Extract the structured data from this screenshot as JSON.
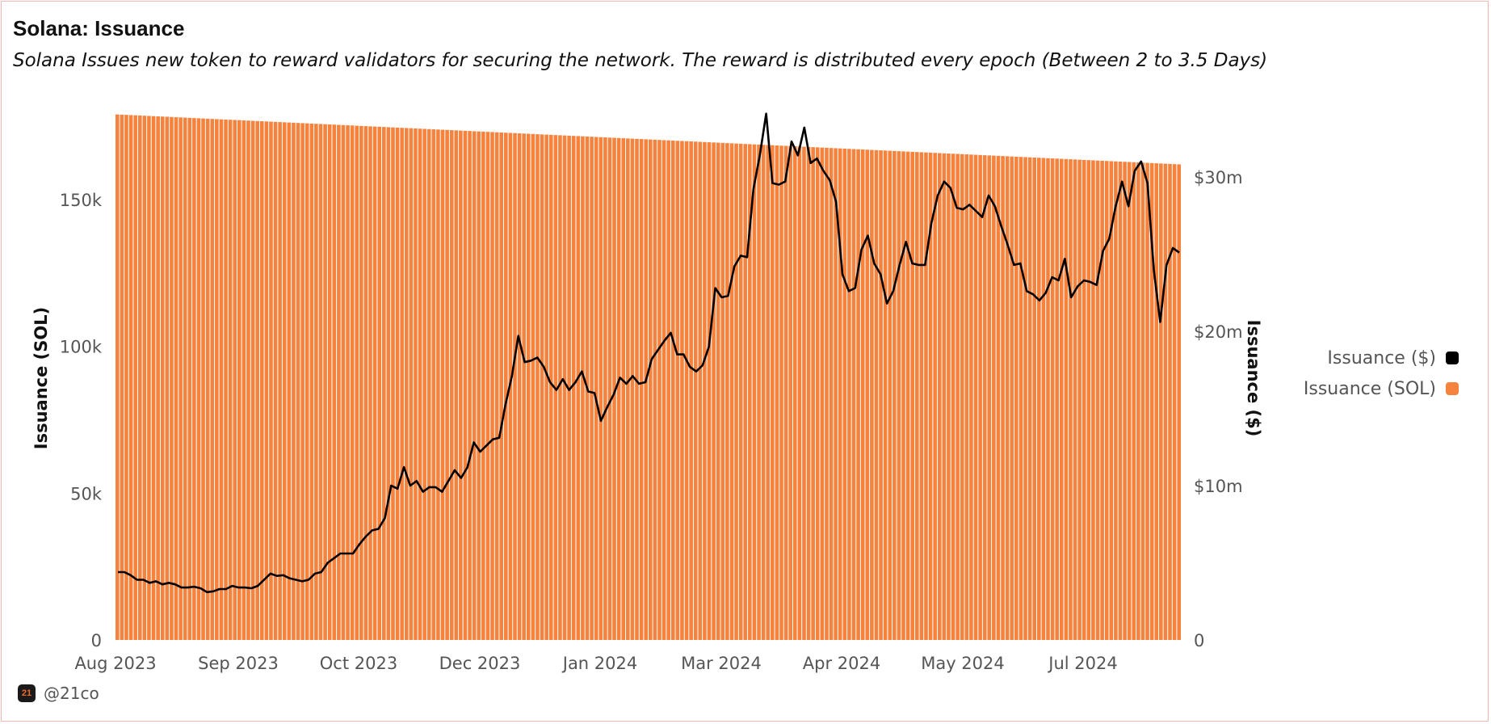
{
  "header": {
    "title": "Solana: Issuance",
    "subtitle": "Solana Issues new token to reward validators for securing the network. The reward is distributed every epoch (Between 2 to 3.5 Days)"
  },
  "footer": {
    "handle": "@21co",
    "logo_text": "21"
  },
  "legend": [
    {
      "label": "Issuance ($)",
      "color": "#000000"
    },
    {
      "label": "Issuance (SOL)",
      "color": "#f5823d"
    }
  ],
  "colors": {
    "bars": "#f5823d",
    "bar_gap": "#ffffff",
    "line": "#000000"
  },
  "chart_data": {
    "type": "bar+line",
    "x_axis": {
      "tick_labels": [
        "Aug 2023",
        "Sep 2023",
        "Oct 2023",
        "Dec 2023",
        "Jan 2024",
        "Mar 2024",
        "Apr 2024",
        "May 2024",
        "Jul 2024"
      ]
    },
    "y_left": {
      "label": "Issuance (SOL)",
      "range": [
        0,
        180000
      ],
      "tick_labels": [
        "0",
        "50k",
        "100k",
        "150k"
      ],
      "tick_values": [
        0,
        50000,
        100000,
        150000
      ]
    },
    "y_right": {
      "label": "Issuance ($)",
      "range": [
        0,
        34500000
      ],
      "tick_labels": [
        "0",
        "$10m",
        "$20m",
        "$30m"
      ],
      "tick_values": [
        0,
        10000000,
        20000000,
        30000000
      ]
    },
    "bars": {
      "series": "Issuance (SOL)",
      "count": 236,
      "start_value": 179000,
      "end_value": 162000
    },
    "line": {
      "series": "Issuance ($)",
      "values_m": [
        4.4,
        4.4,
        4.2,
        3.9,
        3.9,
        3.7,
        3.8,
        3.6,
        3.7,
        3.6,
        3.4,
        3.4,
        3.45,
        3.35,
        3.1,
        3.15,
        3.3,
        3.3,
        3.5,
        3.4,
        3.4,
        3.35,
        3.5,
        3.9,
        4.3,
        4.15,
        4.2,
        4.0,
        3.9,
        3.8,
        3.9,
        4.3,
        4.4,
        5.0,
        5.3,
        5.6,
        5.6,
        5.6,
        6.2,
        6.7,
        7.1,
        7.2,
        7.9,
        10.0,
        9.8,
        11.2,
        10.0,
        10.3,
        9.6,
        9.9,
        9.9,
        9.6,
        10.3,
        11.0,
        10.5,
        11.2,
        12.8,
        12.2,
        12.6,
        13.0,
        13.1,
        15.3,
        17.1,
        19.7,
        18.0,
        18.1,
        18.3,
        17.7,
        16.7,
        16.2,
        16.9,
        16.2,
        16.7,
        17.4,
        16.1,
        16.0,
        14.2,
        15.1,
        15.9,
        17.0,
        16.6,
        17.1,
        16.6,
        16.7,
        18.2,
        18.8,
        19.4,
        19.9,
        18.5,
        18.5,
        17.7,
        17.4,
        17.8,
        19.0,
        22.8,
        22.2,
        22.3,
        24.2,
        24.9,
        24.8,
        29.2,
        31.4,
        34.1,
        29.6,
        29.5,
        29.7,
        32.3,
        31.4,
        33.2,
        30.9,
        31.2,
        30.4,
        29.8,
        28.4,
        23.7,
        22.6,
        22.8,
        25.3,
        26.2,
        24.4,
        23.7,
        21.8,
        22.6,
        24.3,
        25.8,
        24.4,
        24.3,
        24.3,
        27.0,
        28.8,
        29.7,
        29.3,
        28.0,
        27.9,
        28.2,
        27.8,
        27.4,
        28.8,
        28.1,
        26.8,
        25.6,
        24.3,
        24.4,
        22.6,
        22.4,
        22.0,
        22.5,
        23.5,
        23.3,
        24.7,
        22.2,
        22.9,
        23.3,
        23.2,
        23.0,
        25.2,
        26.0,
        28.1,
        29.7,
        28.1,
        30.4,
        31.0,
        29.6,
        24.0,
        20.6,
        24.3,
        25.4,
        25.1
      ]
    }
  }
}
